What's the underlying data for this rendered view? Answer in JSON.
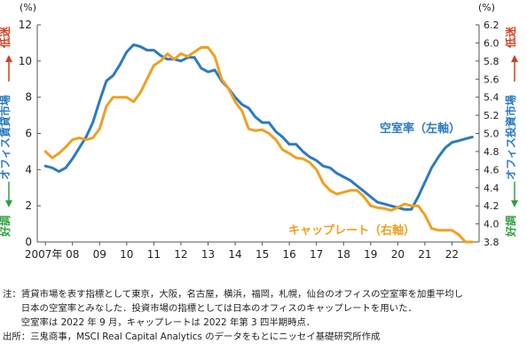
{
  "chart_data": {
    "type": "line",
    "left_axis": {
      "unit": "(%)",
      "ylim": [
        0,
        12
      ],
      "ticks": [
        "0",
        "2",
        "4",
        "6",
        "8",
        "10",
        "12"
      ],
      "color": "#2b7bc0"
    },
    "right_axis": {
      "unit": "(%)",
      "ylim": [
        3.8,
        6.2
      ],
      "ticks": [
        "3.8",
        "4.0",
        "4.2",
        "4.4",
        "4.6",
        "4.8",
        "5.0",
        "5.2",
        "5.4",
        "5.6",
        "5.8",
        "6.0",
        "6.2"
      ],
      "color": "#f0a020"
    },
    "x_ticks": [
      "2007年",
      "08",
      "09",
      "10",
      "11",
      "12",
      "13",
      "14",
      "15",
      "16",
      "17",
      "18",
      "19",
      "20",
      "21",
      "22"
    ],
    "left_side_label": {
      "top": "低迷",
      "middle": "オフィス賃貸市場",
      "bottom": "好調",
      "arrow_color": "#d04020",
      "arrow_down_color": "#30a040"
    },
    "right_side_label": {
      "top": "低迷",
      "middle": "オフィス投資市場",
      "bottom": "好調",
      "arrow_color": "#d04020",
      "arrow_down_color": "#30a040"
    },
    "series": [
      {
        "name": "空室率（左軸）",
        "axis": "left",
        "color": "#2b7bc0",
        "x": [
          2007.0,
          2007.25,
          2007.5,
          2007.75,
          2008.0,
          2008.25,
          2008.5,
          2008.75,
          2009.0,
          2009.25,
          2009.5,
          2009.75,
          2010.0,
          2010.25,
          2010.5,
          2010.75,
          2011.0,
          2011.25,
          2011.5,
          2011.75,
          2012.0,
          2012.25,
          2012.5,
          2012.75,
          2013.0,
          2013.25,
          2013.5,
          2013.75,
          2014.0,
          2014.25,
          2014.5,
          2014.75,
          2015.0,
          2015.25,
          2015.5,
          2015.75,
          2016.0,
          2016.25,
          2016.5,
          2016.75,
          2017.0,
          2017.25,
          2017.5,
          2017.75,
          2018.0,
          2018.25,
          2018.5,
          2018.75,
          2019.0,
          2019.25,
          2019.5,
          2019.75,
          2020.0,
          2020.25,
          2020.5,
          2020.75,
          2021.0,
          2021.25,
          2021.5,
          2021.75,
          2022.0,
          2022.25,
          2022.5,
          2022.75
        ],
        "values": [
          4.2,
          4.1,
          3.9,
          4.1,
          4.6,
          5.2,
          5.8,
          6.6,
          7.8,
          8.9,
          9.2,
          9.8,
          10.5,
          10.9,
          10.8,
          10.6,
          10.6,
          10.3,
          10.1,
          10.1,
          10.0,
          10.2,
          10.2,
          9.6,
          9.4,
          9.5,
          8.9,
          8.5,
          8.0,
          7.6,
          7.4,
          6.9,
          6.6,
          6.6,
          6.1,
          5.8,
          5.4,
          5.4,
          5.0,
          4.7,
          4.5,
          4.2,
          4.1,
          3.8,
          3.6,
          3.4,
          3.1,
          2.8,
          2.5,
          2.2,
          2.1,
          2.0,
          1.9,
          1.8,
          1.8,
          2.5,
          3.3,
          4.1,
          4.7,
          5.2,
          5.5,
          5.6,
          5.7,
          5.8
        ]
      },
      {
        "name": "キャップレート（右軸）",
        "axis": "right",
        "color": "#f0a020",
        "x": [
          2007.0,
          2007.25,
          2007.5,
          2007.75,
          2008.0,
          2008.25,
          2008.5,
          2008.75,
          2009.0,
          2009.25,
          2009.5,
          2009.75,
          2010.0,
          2010.25,
          2010.5,
          2010.75,
          2011.0,
          2011.25,
          2011.5,
          2011.75,
          2012.0,
          2012.25,
          2012.5,
          2012.75,
          2013.0,
          2013.25,
          2013.5,
          2013.75,
          2014.0,
          2014.25,
          2014.5,
          2014.75,
          2015.0,
          2015.25,
          2015.5,
          2015.75,
          2016.0,
          2016.25,
          2016.5,
          2016.75,
          2017.0,
          2017.25,
          2017.5,
          2017.75,
          2018.0,
          2018.25,
          2018.5,
          2018.75,
          2019.0,
          2019.25,
          2019.5,
          2019.75,
          2020.0,
          2020.25,
          2020.5,
          2020.75,
          2021.0,
          2021.25,
          2021.5,
          2021.75,
          2022.0,
          2022.25,
          2022.5,
          2022.75
        ],
        "values": [
          4.8,
          4.73,
          4.78,
          4.85,
          4.93,
          4.95,
          4.93,
          4.95,
          5.05,
          5.3,
          5.4,
          5.4,
          5.4,
          5.35,
          5.45,
          5.6,
          5.75,
          5.8,
          5.88,
          5.82,
          5.88,
          5.85,
          5.9,
          5.95,
          5.95,
          5.85,
          5.6,
          5.5,
          5.35,
          5.25,
          5.05,
          5.03,
          5.04,
          5.0,
          4.93,
          4.82,
          4.78,
          4.73,
          4.72,
          4.68,
          4.6,
          4.45,
          4.37,
          4.33,
          4.35,
          4.37,
          4.37,
          4.3,
          4.2,
          4.18,
          4.17,
          4.15,
          4.18,
          4.22,
          4.2,
          4.2,
          4.1,
          3.95,
          3.93,
          3.93,
          3.93,
          3.88,
          3.8,
          3.8
        ]
      }
    ],
    "annotations": [
      {
        "text": "空室率（左軸）",
        "color": "#2b7bc0"
      },
      {
        "text": "キャップレート（右軸）",
        "color": "#f0a020"
      }
    ]
  },
  "notes": {
    "line1": "注：賃貸市場を表す指標として東京，大阪，名古屋，横浜，福岡，札幌，仙台のオフィスの空室率を加重平均し",
    "line2": "　　日本の空室率とみなした．投資市場の指標としては日本のオフィスのキャップレートを用いた．",
    "line3": "　　空室率は 2022 年 9 月，キャップレートは 2022 年第 3 四半期時点．",
    "line4": "出所：三鬼商事，MSCI Real Capital Analytics のデータをもとにニッセイ基礎研究所作成"
  }
}
